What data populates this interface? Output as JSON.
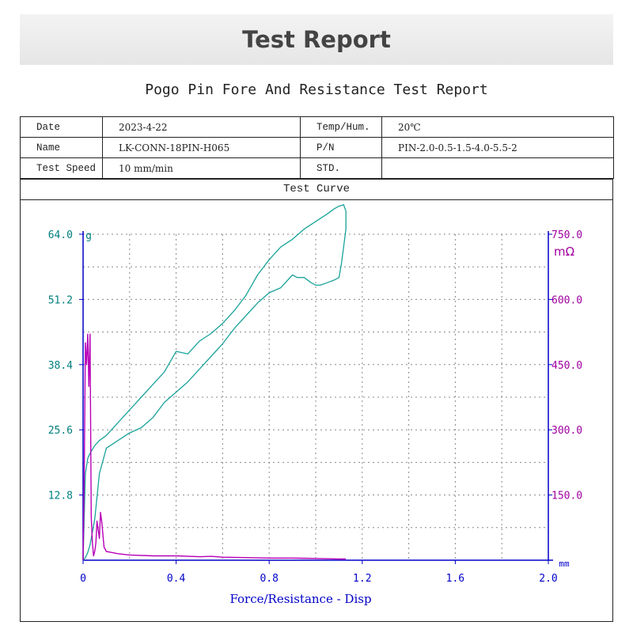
{
  "page": {
    "banner_title": "Test Report",
    "report_title": "Pogo Pin Fore And Resistance Test Report"
  },
  "info": {
    "date_label": "Date",
    "date_value": "2023-4-22",
    "temp_label": "Temp/Hum.",
    "temp_value": "20℃",
    "name_label": "Name",
    "name_value": "LK-CONN-18PIN-H065",
    "pn_label": "P/N",
    "pn_value": "PIN-2.0-0.5-1.5-4.0-5.5-2",
    "speed_label": "Test Speed",
    "speed_value": "10 mm/min",
    "std_label": "STD.",
    "std_value": ""
  },
  "curve_section": {
    "title": "Test Curve"
  },
  "colors": {
    "force": "#1aa39a",
    "resistance": "#b800b8",
    "axis": "#0000c8",
    "left_ticks": "#007f7f",
    "right_ticks": "#a000a0",
    "grid": "#888888"
  },
  "chart_data": {
    "type": "line",
    "xlabel": "Force/Resistance - Disp",
    "x_unit": "mm",
    "y_left_unit": "g",
    "y_right_unit": "mΩ",
    "xlim": [
      0,
      2.0
    ],
    "ylim_left": [
      0,
      64.0
    ],
    "ylim_right": [
      0,
      750.0
    ],
    "x_ticks": [
      "0",
      "0.4",
      "0.8",
      "1.2",
      "1.6",
      "2.0"
    ],
    "y_left_ticks": [
      "12.8",
      "25.6",
      "38.4",
      "51.2",
      "64.0"
    ],
    "y_right_ticks": [
      "150.0",
      "300.0",
      "450.0",
      "600.0",
      "750.0"
    ],
    "grid": true,
    "series": [
      {
        "axis": "left",
        "x": [
          0.0,
          0.01,
          0.02,
          0.03,
          0.05,
          0.07,
          0.1,
          0.15,
          0.2,
          0.25,
          0.3,
          0.35,
          0.4,
          0.45,
          0.5,
          0.55,
          0.6,
          0.65,
          0.7,
          0.75,
          0.8,
          0.85,
          0.9,
          0.95,
          1.0,
          1.05,
          1.08,
          1.1,
          1.12,
          1.13,
          1.13,
          1.12,
          1.11,
          1.1,
          1.08,
          1.05,
          1.02,
          1.0,
          0.98,
          0.95,
          0.92,
          0.9,
          0.85,
          0.8,
          0.75,
          0.7,
          0.65,
          0.6,
          0.55,
          0.5,
          0.45,
          0.4,
          0.35,
          0.3,
          0.25,
          0.2,
          0.15,
          0.1,
          0.07,
          0.05,
          0.03,
          0.02,
          0.01,
          0.0
        ],
        "y": [
          0.0,
          17.0,
          20.0,
          21.0,
          22.5,
          23.5,
          24.5,
          27.0,
          29.5,
          32.0,
          34.5,
          37.0,
          41.0,
          40.5,
          43.0,
          44.5,
          46.5,
          49.0,
          52.0,
          56.0,
          59.0,
          61.5,
          63.0,
          65.0,
          66.5,
          68.0,
          69.0,
          69.5,
          69.8,
          68.5,
          65.0,
          61.5,
          58.0,
          55.5,
          55.0,
          54.5,
          54.0,
          54.0,
          54.5,
          55.5,
          55.5,
          56.0,
          53.5,
          52.5,
          50.5,
          48.0,
          45.5,
          42.5,
          40.0,
          37.5,
          35.0,
          33.0,
          31.0,
          28.0,
          26.0,
          25.0,
          23.5,
          22.0,
          17.0,
          8.0,
          3.0,
          1.5,
          0.5,
          0.0
        ]
      },
      {
        "axis": "right",
        "x": [
          0.0,
          0.005,
          0.01,
          0.015,
          0.02,
          0.025,
          0.03,
          0.035,
          0.04,
          0.045,
          0.05,
          0.055,
          0.06,
          0.065,
          0.07,
          0.075,
          0.08,
          0.085,
          0.09,
          0.1,
          0.12,
          0.15,
          0.2,
          0.3,
          0.4,
          0.5,
          0.55,
          0.6,
          0.7,
          0.8,
          0.9,
          1.0,
          1.1,
          1.13
        ],
        "y": [
          0,
          200,
          500,
          450,
          520,
          400,
          520,
          100,
          40,
          10,
          20,
          40,
          90,
          70,
          50,
          110,
          90,
          60,
          30,
          20,
          18,
          15,
          12,
          10,
          10,
          8,
          9,
          7,
          6,
          5,
          5,
          4,
          3,
          3
        ]
      }
    ]
  }
}
